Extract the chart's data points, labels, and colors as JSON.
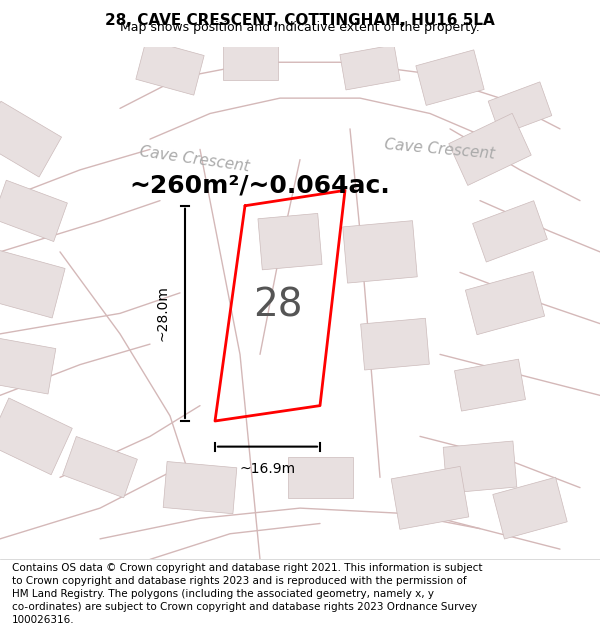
{
  "title": "28, CAVE CRESCENT, COTTINGHAM, HU16 5LA",
  "subtitle": "Map shows position and indicative extent of the property.",
  "footer_line1": "Contains OS data © Crown copyright and database right 2021. This information is subject",
  "footer_line2": "to Crown copyright and database rights 2023 and is reproduced with the permission of",
  "footer_line3": "HM Land Registry. The polygons (including the associated geometry, namely x, y",
  "footer_line4": "co-ordinates) are subject to Crown copyright and database rights 2023 Ordnance Survey",
  "footer_line5": "100026316.",
  "area_label": "~260m²/~0.064ac.",
  "number_label": "28",
  "dim_height": "~28.0m",
  "dim_width": "~16.9m",
  "road_label_left": "Cave Crescent",
  "road_label_right": "Cave Crescent",
  "bg_color": "#f5f0f0",
  "map_bg_color": "#ffffff",
  "road_color": "#d4b8b8",
  "building_color": "#e8e0e0",
  "plot_outline_color": "#ff0000",
  "plot_fill_color": "#ffffff",
  "dim_color": "#000000",
  "text_color": "#000000",
  "road_text_color": "#aaaaaa",
  "title_fontsize": 11,
  "subtitle_fontsize": 9,
  "footer_fontsize": 7.5,
  "area_fontsize": 18,
  "number_fontsize": 28,
  "road_fontsize": 11,
  "dim_fontsize": 10
}
